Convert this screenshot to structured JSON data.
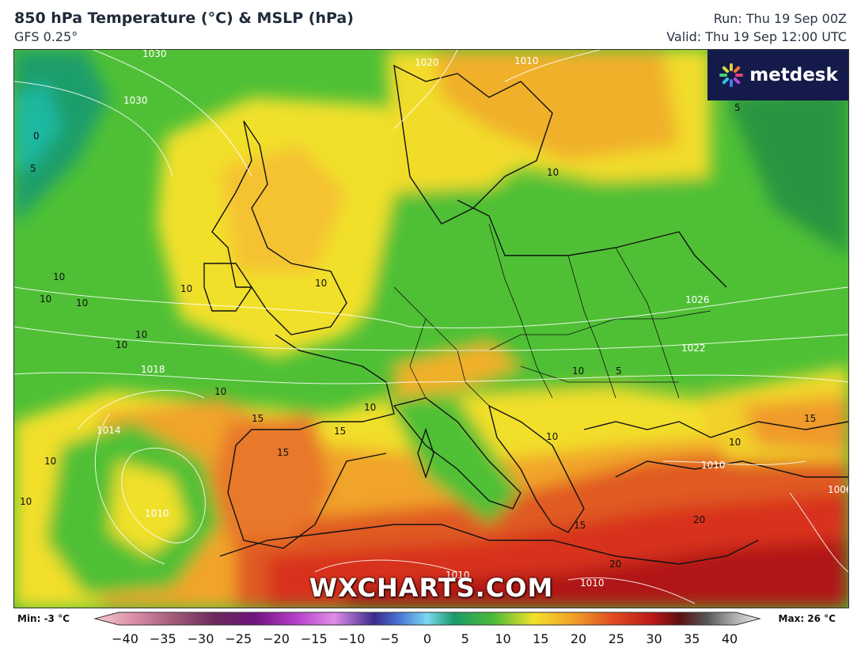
{
  "header": {
    "title": "850 hPa Temperature (°C) & MSLP (hPa)",
    "model": "GFS 0.25°",
    "run": "Run: Thu 19 Sep 00Z",
    "valid": "Valid: Thu 19 Sep 12:00 UTC"
  },
  "brand": {
    "name": "metdesk",
    "icon": "metdesk-flower-icon"
  },
  "watermark": "WXCHARTS.COM",
  "scale": {
    "min_label": "Min: -3 °C",
    "max_label": "Max: 26 °C",
    "ticks": [
      "−40",
      "−35",
      "−30",
      "−25",
      "−20",
      "−15",
      "−10",
      "−5",
      "0",
      "5",
      "10",
      "15",
      "20",
      "25",
      "30",
      "35",
      "40"
    ]
  },
  "isobar_labels": [
    "1030",
    "1030",
    "1026",
    "1022",
    "1018",
    "1014",
    "1010",
    "1010",
    "1010",
    "1010",
    "1006",
    "1010",
    "1020"
  ],
  "temperature_labels": [
    "10",
    "10",
    "10",
    "10",
    "10",
    "10",
    "10",
    "10",
    "10",
    "10",
    "10",
    "10",
    "10",
    "10",
    "10",
    "15",
    "15",
    "15",
    "15",
    "15",
    "20",
    "20",
    "5",
    "5",
    "0",
    "5"
  ],
  "colors": {
    "cold_cyan": "#22b39a",
    "green_dark": "#2f9e32",
    "green": "#58c83a",
    "yellow": "#f2e22a",
    "orange": "#f0a528",
    "red": "#d83a1c",
    "deep_red": "#a81414"
  }
}
